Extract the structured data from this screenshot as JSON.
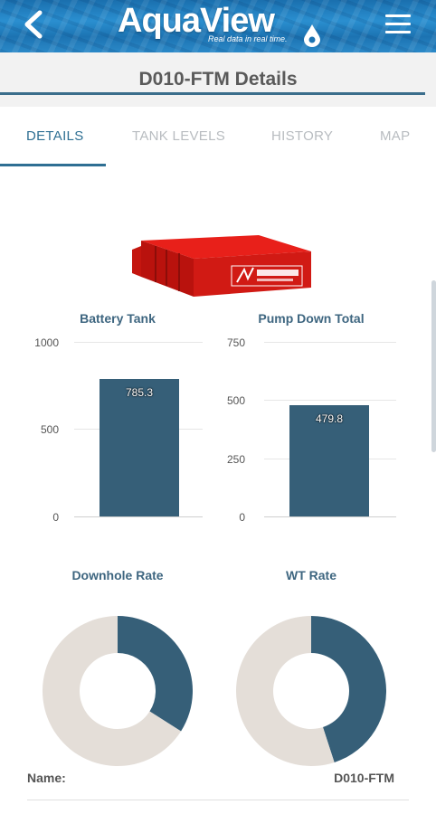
{
  "header": {
    "logo_text": "AquaView",
    "tagline": "Real data in real time."
  },
  "page": {
    "title": "D010-FTM Details"
  },
  "tabs": [
    {
      "label": "DETAILS",
      "active": true
    },
    {
      "label": "TANK LEVELS",
      "active": false
    },
    {
      "label": "HISTORY",
      "active": false
    },
    {
      "label": "MAP",
      "active": false
    }
  ],
  "chart_data": [
    {
      "type": "bar",
      "title": "Battery Tank",
      "categories": [
        ""
      ],
      "values": [
        785.3
      ],
      "value_labels": [
        "785.3"
      ],
      "ylim": [
        0,
        1000
      ],
      "yticks": [
        "1000",
        "500",
        "0"
      ],
      "color": "#365f78"
    },
    {
      "type": "bar",
      "title": "Pump Down Total",
      "categories": [
        ""
      ],
      "values": [
        479.8
      ],
      "value_labels": [
        "479.8"
      ],
      "ylim": [
        0,
        750
      ],
      "yticks": [
        "750",
        "500",
        "250",
        "0"
      ],
      "color": "#365f78"
    },
    {
      "type": "pie",
      "title": "Downhole Rate",
      "donut": true,
      "slice_fractions": [
        0.34,
        0.66
      ],
      "colors": [
        "#365f78",
        "#e4ded8"
      ]
    },
    {
      "type": "pie",
      "title": "WT Rate",
      "donut": true,
      "slice_fractions": [
        0.45,
        0.55
      ],
      "colors": [
        "#365f78",
        "#e4ded8"
      ]
    }
  ],
  "details": {
    "name_label": "Name:",
    "name_value": "D010-FTM"
  }
}
